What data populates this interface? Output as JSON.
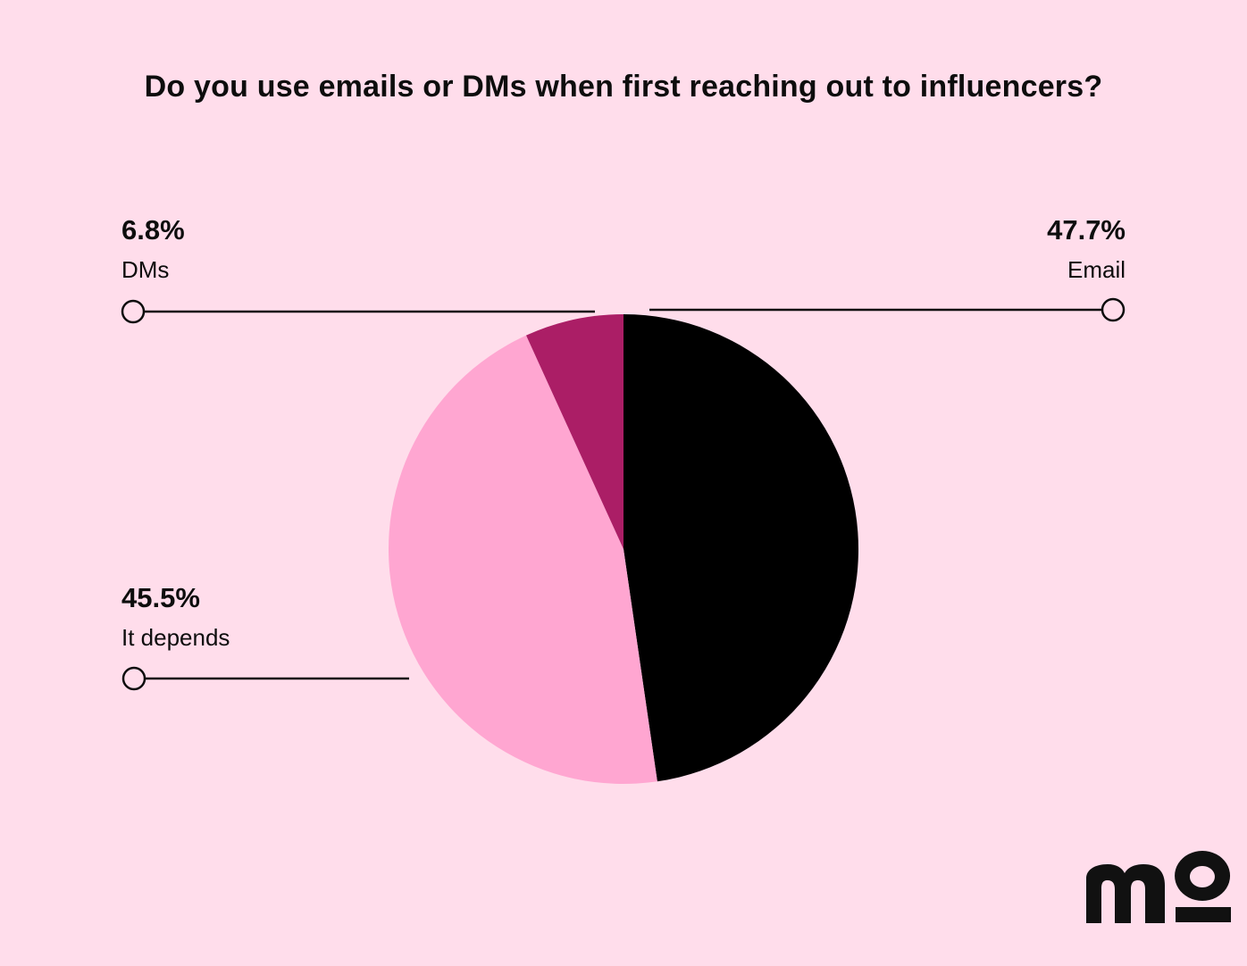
{
  "chart_data": {
    "type": "pie",
    "title": "Do you use emails or DMs when first reaching out to influencers?",
    "slices": [
      {
        "label": "Email",
        "value": 47.7,
        "display": "47.7%",
        "color": "#000000"
      },
      {
        "label": "It depends",
        "value": 45.5,
        "display": "45.5%",
        "color": "#FFA6D1"
      },
      {
        "label": "DMs",
        "value": 6.8,
        "display": "6.8%",
        "color": "#AB1E66"
      }
    ],
    "start_angle_deg": 0,
    "direction": "clockwise"
  },
  "colors": {
    "background": "#FFDDEB",
    "text": "#0d0d0d",
    "leader_line": "#0d0d0d"
  },
  "brand": {
    "logo_text": "mo"
  }
}
